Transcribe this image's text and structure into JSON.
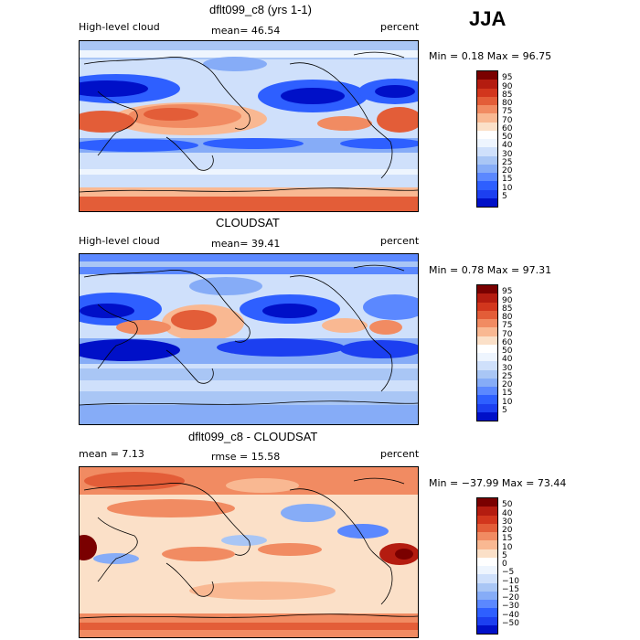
{
  "season": "JJA",
  "palette_main": [
    "#00007f",
    "#0010c8",
    "#1c3ff0",
    "#2e5fff",
    "#5b88ff",
    "#86acf7",
    "#a9c6f5",
    "#cfe0fb",
    "#eef5fe",
    "#ffffff",
    "#fbe0c8",
    "#f9b892",
    "#f18b62",
    "#e35d38",
    "#d2361d",
    "#b41c10",
    "#7a0000"
  ],
  "panels": [
    {
      "title": "dflt099_c8 (yrs 1-1)",
      "left_label": "High-level cloud",
      "mean_text": "mean=  46.54",
      "units": "percent",
      "minmax": "Min =   0.18 Max =  96.75",
      "levels": [
        "95",
        "90",
        "85",
        "80",
        "75",
        "70",
        "60",
        "50",
        "40",
        "30",
        "25",
        "20",
        "15",
        "10",
        "5"
      ]
    },
    {
      "title": "CLOUDSAT",
      "left_label": "High-level cloud",
      "mean_text": "mean=  39.41",
      "units": "percent",
      "minmax": "Min =   0.78 Max =  97.31",
      "levels": [
        "95",
        "90",
        "85",
        "80",
        "75",
        "70",
        "60",
        "50",
        "40",
        "30",
        "25",
        "20",
        "15",
        "10",
        "5"
      ]
    },
    {
      "title": "dflt099_c8 - CLOUDSAT",
      "left_label": "mean =    7.13",
      "mean_text": "rmse =  15.58",
      "units": "percent",
      "minmax": "Min = −37.99 Max =  73.44",
      "levels": [
        "50",
        "40",
        "30",
        "20",
        "15",
        "10",
        "5",
        "0",
        "−5",
        "−10",
        "−15",
        "−20",
        "−30",
        "−40",
        "−50"
      ]
    }
  ]
}
